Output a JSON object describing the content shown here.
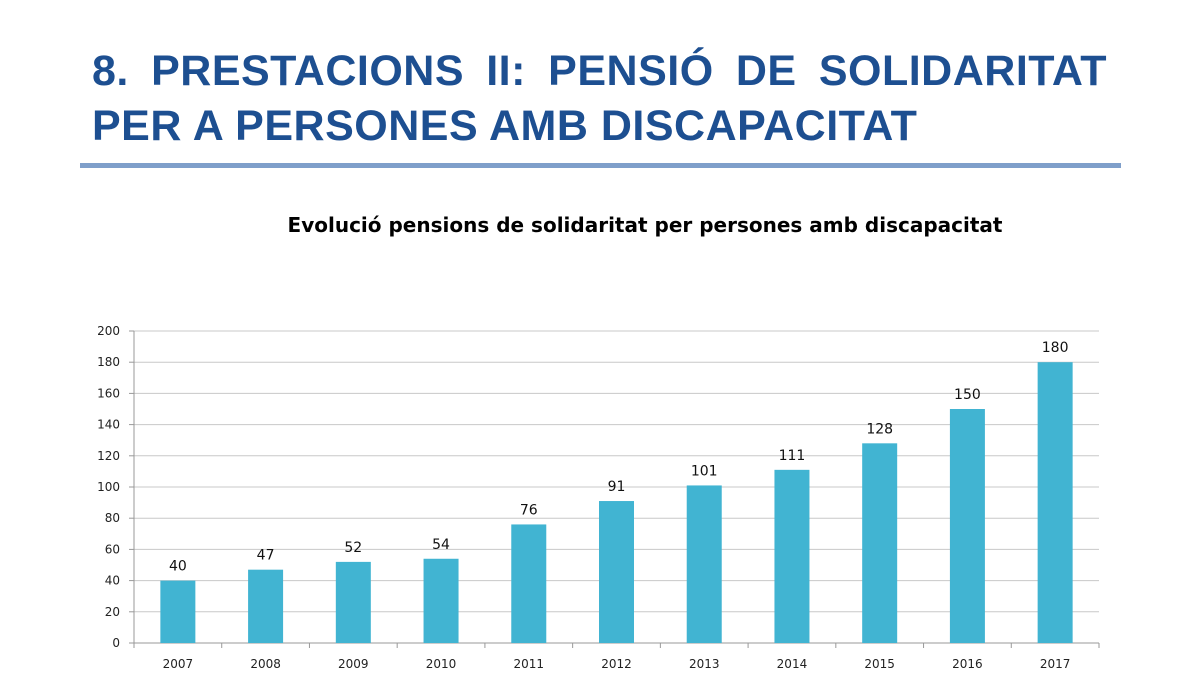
{
  "slide": {
    "title_line1": "8. PRESTACIONS II: PENSIÓ DE SOLIDARITAT",
    "title_line2": "PER A PERSONES AMB DISCAPACITAT",
    "title_color": "#1d4f91",
    "rule_color": "#7f9fca"
  },
  "chart_data": {
    "type": "bar",
    "title": "Evolució pensions de solidaritat per persones amb discapacitat",
    "categories": [
      "2007",
      "2008",
      "2009",
      "2010",
      "2011",
      "2012",
      "2013",
      "2014",
      "2015",
      "2016",
      "2017"
    ],
    "values": [
      40,
      47,
      52,
      54,
      76,
      91,
      101,
      111,
      128,
      150,
      180
    ],
    "xlabel": "",
    "ylabel": "",
    "ylim": [
      0,
      200
    ],
    "yticks": [
      0,
      20,
      40,
      60,
      80,
      100,
      120,
      140,
      160,
      180,
      200
    ],
    "grid": true,
    "legend": "none",
    "data_labels": true,
    "bar_color": "#41b4d2"
  }
}
